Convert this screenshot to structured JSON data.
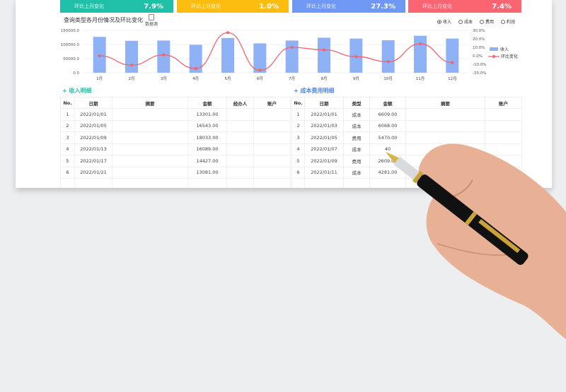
{
  "kpis": [
    {
      "label": "环比上月变化",
      "value": "7.9%",
      "color": "#1fbfa8"
    },
    {
      "label": "环比上月变化",
      "value": "1.0%",
      "color": "#fdbd10"
    },
    {
      "label": "环比上月变化",
      "value": "27.3%",
      "color": "#6f98f5"
    },
    {
      "label": "环比上月变化",
      "value": "7.4%",
      "color": "#fb6571"
    }
  ],
  "chart_title": "查询类型各月份情况及环比变化",
  "data_source_label": "数据源",
  "radios": [
    {
      "label": "收入",
      "selected": true
    },
    {
      "label": "成本",
      "selected": false
    },
    {
      "label": "费用",
      "selected": false
    },
    {
      "label": "利润",
      "selected": false
    }
  ],
  "chart_data": {
    "type": "bar+line",
    "categories": [
      "1月",
      "2月",
      "3月",
      "4月",
      "5月",
      "6月",
      "7月",
      "8月",
      "9月",
      "10月",
      "11月",
      "12月"
    ],
    "series": [
      {
        "name": "收入",
        "type": "bar",
        "axis": "left",
        "color": "#8fb1f5",
        "values": [
          127000,
          113000,
          114000,
          99000,
          123000,
          104000,
          114000,
          124000,
          121000,
          115000,
          131000,
          121000
        ]
      },
      {
        "name": "环比变化",
        "type": "line",
        "axis": "right",
        "color": "#f0646e",
        "values": [
          0.0,
          -11.0,
          1.0,
          -15.0,
          27.3,
          -17.0,
          10.0,
          7.0,
          -1.0,
          -7.0,
          14.0,
          -8.0
        ]
      }
    ],
    "y_left": {
      "range": [
        0,
        150000
      ],
      "ticks": [
        "0.0",
        "50000.0",
        "100000.0",
        "150000.0"
      ]
    },
    "y_right": {
      "range": [
        -20,
        30
      ],
      "ticks": [
        "-20.0%",
        "-10.0%",
        "0.0%",
        "10.0%",
        "20.0%",
        "30.0%"
      ]
    },
    "legend": "right"
  },
  "income": {
    "title": "收入明细",
    "color": "#1fbfa8",
    "headers": [
      "No.",
      "日期",
      "摘要",
      "金额",
      "经办人",
      "账户"
    ],
    "rows": [
      [
        "1",
        "2022/01/01",
        "",
        "13301.00",
        "",
        ""
      ],
      [
        "2",
        "2022/01/05",
        "",
        "16543.00",
        "",
        ""
      ],
      [
        "3",
        "2022/01/09",
        "",
        "18033.00",
        "",
        ""
      ],
      [
        "4",
        "2022/01/13",
        "",
        "16089.00",
        "",
        ""
      ],
      [
        "5",
        "2022/01/17",
        "",
        "14427.00",
        "",
        ""
      ],
      [
        "6",
        "2022/01/21",
        "",
        "13081.00",
        "",
        ""
      ]
    ]
  },
  "cost": {
    "title": "成本费用明细",
    "color": "#4f86f0",
    "headers": [
      "No.",
      "日期",
      "类型",
      "金额",
      "摘要",
      "账户"
    ],
    "rows": [
      [
        "1",
        "2022/01/01",
        "成本",
        "6609.00",
        "",
        ""
      ],
      [
        "2",
        "2022/01/03",
        "成本",
        "6068.00",
        "",
        ""
      ],
      [
        "3",
        "2022/01/05",
        "费用",
        "5470.00",
        "",
        ""
      ],
      [
        "4",
        "2022/01/07",
        "成本",
        "40",
        "",
        ""
      ],
      [
        "5",
        "2022/01/09",
        "费用",
        "2609.00",
        "",
        ""
      ],
      [
        "6",
        "2022/01/11",
        "成本",
        "4281.00",
        "",
        ""
      ]
    ]
  }
}
